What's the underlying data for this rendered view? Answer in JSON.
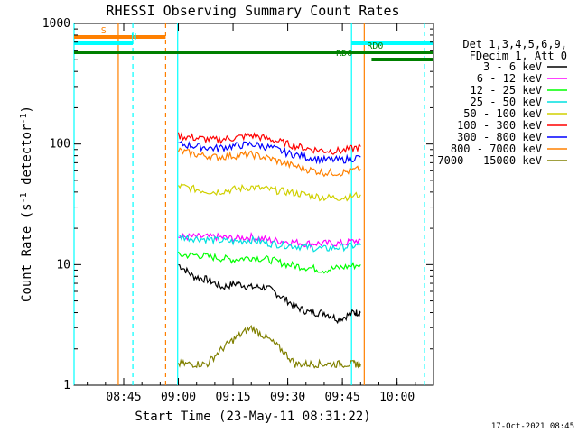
{
  "chart_data": {
    "type": "line",
    "title": "RHESSI Observing Summary Count Rates",
    "xlabel": "Start Time (23-May-11 08:31:22)",
    "ylabel": "Count Rate (s",
    "ylabel_sup1": "-1",
    "ylabel_mid": " detector",
    "ylabel_sup2": "-1",
    "ylabel_end": ")",
    "yscale": "log",
    "ylim": [
      1,
      1000
    ],
    "xlim_minutes": [
      31.37,
      130.0
    ],
    "x_ticks": [
      {
        "minute": 45,
        "label": "08:45"
      },
      {
        "minute": 60,
        "label": "09:00"
      },
      {
        "minute": 75,
        "label": "09:15"
      },
      {
        "minute": 90,
        "label": "09:30"
      },
      {
        "minute": 105,
        "label": "09:45"
      },
      {
        "minute": 120,
        "label": "10:00"
      }
    ],
    "y_ticks": [
      {
        "value": 1,
        "label": "1"
      },
      {
        "value": 10,
        "label": "10"
      },
      {
        "value": 100,
        "label": "100"
      },
      {
        "value": 1000,
        "label": "1000"
      }
    ],
    "legend_header": [
      "Det 1,3,4,5,6,9,",
      "FDecim 1, Att 0"
    ],
    "legend_position": "right",
    "series": [
      {
        "name": "3 - 6 keV",
        "color": "#000000",
        "x": [
          60,
          64,
          68,
          72,
          76,
          80,
          84,
          88,
          92,
          96,
          100,
          104,
          108,
          110
        ],
        "y": [
          10,
          8,
          7.5,
          6.5,
          7,
          6.5,
          6.5,
          5.5,
          4.5,
          4,
          4,
          3.5,
          4,
          4
        ]
      },
      {
        "name": "6 - 12 keV",
        "color": "#ff00ff",
        "x": [
          60,
          65,
          70,
          75,
          80,
          85,
          90,
          95,
          100,
          105,
          110
        ],
        "y": [
          17,
          17,
          17,
          16.5,
          17,
          16,
          15.5,
          15,
          15,
          15,
          16
        ]
      },
      {
        "name": "12 - 25 keV",
        "color": "#00ff00",
        "x": [
          60,
          65,
          70,
          75,
          80,
          85,
          90,
          95,
          100,
          105,
          110
        ],
        "y": [
          12,
          12,
          11.5,
          11,
          11.5,
          11,
          10,
          9.5,
          9,
          9.5,
          10
        ]
      },
      {
        "name": "25 - 50 keV",
        "color": "#00e0e0",
        "x": [
          60,
          65,
          70,
          75,
          80,
          85,
          90,
          95,
          100,
          105,
          110
        ],
        "y": [
          17,
          16.5,
          16,
          15.5,
          16,
          15,
          14.5,
          14,
          13.5,
          14,
          14.5
        ]
      },
      {
        "name": "50 - 100 keV",
        "color": "#d0d000",
        "x": [
          60,
          65,
          70,
          75,
          80,
          85,
          90,
          95,
          100,
          105,
          110
        ],
        "y": [
          45,
          42,
          40,
          42,
          44,
          42,
          40,
          38,
          36,
          36,
          38
        ]
      },
      {
        "name": "100 - 300 keV",
        "color": "#ff0000",
        "x": [
          60,
          65,
          70,
          75,
          80,
          85,
          90,
          95,
          100,
          105,
          110
        ],
        "y": [
          117,
          112,
          108,
          112,
          118,
          110,
          100,
          92,
          88,
          88,
          95
        ]
      },
      {
        "name": "300 - 800 keV",
        "color": "#0000ff",
        "x": [
          60,
          65,
          70,
          75,
          80,
          85,
          90,
          95,
          100,
          105,
          110
        ],
        "y": [
          100,
          96,
          92,
          96,
          100,
          94,
          84,
          78,
          74,
          74,
          78
        ]
      },
      {
        "name": "800 - 7000 keV",
        "color": "#ff8000",
        "x": [
          60,
          65,
          70,
          75,
          80,
          85,
          90,
          95,
          100,
          105,
          110
        ],
        "y": [
          88,
          82,
          78,
          80,
          82,
          76,
          68,
          62,
          58,
          58,
          62
        ]
      },
      {
        "name": "7000 - 15000 keV",
        "color": "#808000",
        "x": [
          60,
          64,
          68,
          72,
          76,
          80,
          84,
          88,
          92,
          96,
          100,
          104,
          108,
          110
        ],
        "y": [
          1.5,
          1.5,
          1.5,
          2,
          2.5,
          3,
          2.5,
          2,
          1.5,
          1.5,
          1.5,
          1.5,
          1.5,
          1.5
        ]
      }
    ],
    "flag_bars": [
      {
        "label": "S",
        "color": "#ff8000",
        "start": 31.37,
        "end": 56.5,
        "level": 0
      },
      {
        "label": "N",
        "color": "#00ffff",
        "start": 31.37,
        "end": 47.5,
        "level": 1
      },
      {
        "label": "N",
        "color": "#00ffff",
        "start": 107.5,
        "end": 130,
        "level": 1
      },
      {
        "label": "RD0",
        "color": "#008000",
        "start": 31.37,
        "end": 130,
        "level": 2
      },
      {
        "label": "RD6",
        "color": "#008000",
        "start": 113,
        "end": 130,
        "level": 3
      }
    ],
    "flag_bar_labels": [
      {
        "text": "S",
        "color": "#ff8000",
        "minute": 39.5,
        "level": 0
      },
      {
        "text": "N",
        "color": "#00ffff",
        "minute": 47.8,
        "level": 1
      },
      {
        "text": "RD0",
        "color": "#008000",
        "minute": 114,
        "level": 2
      },
      {
        "text": "RD6",
        "color": "#008000",
        "minute": 105.5,
        "level": 3
      }
    ],
    "vertical_markers": [
      {
        "minute": 31.37,
        "color": "#00ffff",
        "style": "solid"
      },
      {
        "minute": 43.5,
        "color": "#ff8000",
        "style": "solid"
      },
      {
        "minute": 47.5,
        "color": "#00ffff",
        "style": "dashed"
      },
      {
        "minute": 56.5,
        "color": "#ff8000",
        "style": "dashed"
      },
      {
        "minute": 59.8,
        "color": "#00ffff",
        "style": "solid"
      },
      {
        "minute": 107.5,
        "color": "#00ffff",
        "style": "solid"
      },
      {
        "minute": 111,
        "color": "#ff8000",
        "style": "solid"
      },
      {
        "minute": 127.5,
        "color": "#00ffff",
        "style": "dashed"
      }
    ],
    "grid": false
  },
  "footer": {
    "timestamp": "17-Oct-2021 08:45"
  }
}
